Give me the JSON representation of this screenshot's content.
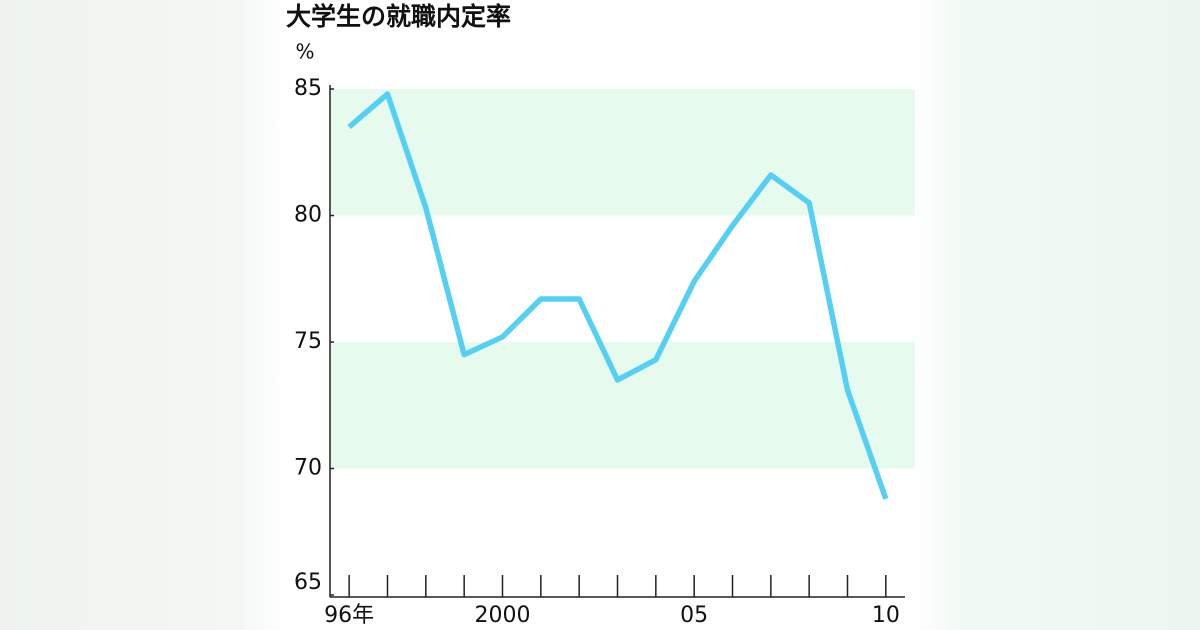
{
  "chart_data": {
    "type": "line",
    "title": "大学生の就職内定率",
    "y_unit": "%",
    "x": [
      1996,
      1997,
      1998,
      1999,
      2000,
      2001,
      2002,
      2003,
      2004,
      2005,
      2006,
      2007,
      2008,
      2009,
      2010
    ],
    "values": [
      83.5,
      84.8,
      80.3,
      74.5,
      75.2,
      76.7,
      76.7,
      73.5,
      74.3,
      77.4,
      79.6,
      81.6,
      80.5,
      73.1,
      68.8
    ],
    "color": "#55d0f5",
    "xlim": [
      1995.5,
      2010.5
    ],
    "xticks": [
      {
        "value": 1996,
        "label": "96年"
      },
      2000,
      {
        "value": 2005,
        "label": "05"
      },
      {
        "value": 2010,
        "label": "10"
      }
    ],
    "ylim": [
      65,
      85
    ],
    "yticks": [
      65,
      70,
      75,
      80,
      85
    ],
    "bands": [
      [
        70,
        75
      ],
      [
        80,
        85
      ]
    ],
    "band_color": "#e6fbee"
  }
}
